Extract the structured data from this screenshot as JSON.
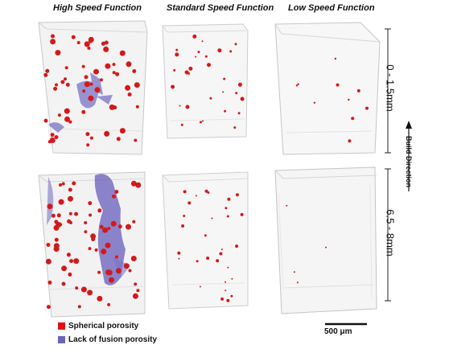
{
  "columns": [
    "High Speed Function",
    "Standard Speed Function",
    "Low Speed Function"
  ],
  "rows": [
    "0 - 1.5mm",
    "6.5 - 8mm"
  ],
  "build_direction": "Build Direction",
  "legend": [
    {
      "label": "Spherical porosity",
      "color": "#e01010"
    },
    {
      "label": "Lack of fusion porosity",
      "color": "#6b63b8"
    }
  ],
  "scale_bar": "500 μm",
  "colors": {
    "pore": "#d11a1a",
    "lof": "#6f67bf",
    "block_edge": "#c9c9c9",
    "block_fill": "#f4f4f4"
  }
}
